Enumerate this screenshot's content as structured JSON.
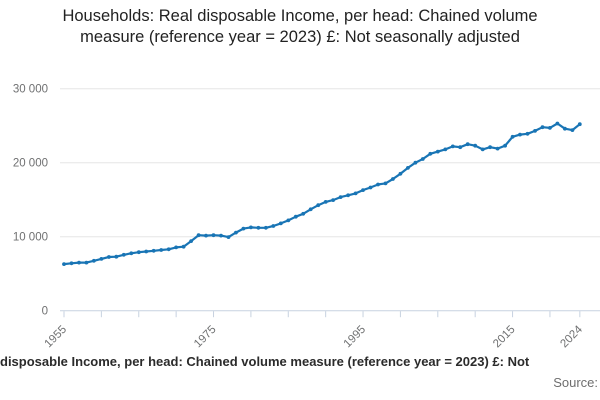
{
  "title": "Households: Real disposable Income, per head: Chained volume measure (reference year = 2023) £: Not seasonally adjusted",
  "footer": {
    "legend_visible_text": "disposable Income, per head: Chained volume measure (reference year = 2023) £: Not",
    "source_label": "Source:"
  },
  "colors": {
    "line": "#1975b5",
    "marker": "#1975b5",
    "grid": "#e6e6e6",
    "axis": "#c7d2e0",
    "tick_label": "#6f7071",
    "title_text": "#222222"
  },
  "chart_data": {
    "type": "line",
    "title": "Households: Real disposable Income, per head: Chained volume measure (reference year = 2023) £: Not seasonally adjusted",
    "xlabel": "",
    "ylabel": "",
    "grid": true,
    "markers": true,
    "legend_position": "bottom",
    "ylim": [
      0,
      30000
    ],
    "xlim": [
      1955,
      2025
    ],
    "start_year": 1955,
    "end_year": 2024,
    "values": [
      6300,
      6400,
      6500,
      6500,
      6750,
      7000,
      7250,
      7300,
      7550,
      7750,
      7900,
      8000,
      8100,
      8200,
      8300,
      8550,
      8650,
      9400,
      10200,
      10150,
      10200,
      10150,
      9950,
      10550,
      11100,
      11250,
      11200,
      11200,
      11450,
      11800,
      12200,
      12700,
      13100,
      13700,
      14250,
      14700,
      14950,
      15350,
      15600,
      15850,
      16300,
      16650,
      17050,
      17200,
      17800,
      18500,
      19300,
      20000,
      20500,
      21200,
      21500,
      21800,
      22200,
      22100,
      22500,
      22300,
      21800,
      22100,
      21900,
      22300,
      23500,
      23800,
      23900,
      24300,
      24800,
      24700,
      25300,
      24600,
      24400,
      25200
    ],
    "yticks": [
      {
        "value": 0,
        "label": "0"
      },
      {
        "value": 10000,
        "label": "10 000"
      },
      {
        "value": 20000,
        "label": "20 000"
      },
      {
        "value": 30000,
        "label": "30 000"
      }
    ],
    "xticks_years": [
      1955,
      1960,
      1965,
      1970,
      1975,
      1980,
      1985,
      1990,
      1995,
      2000,
      2005,
      2010,
      2015,
      2020,
      2024
    ],
    "xtick_labels": [
      {
        "year": 1955,
        "label": "1955"
      },
      {
        "year": 1975,
        "label": "1975"
      },
      {
        "year": 1995,
        "label": "1995"
      },
      {
        "year": 2015,
        "label": "2015"
      },
      {
        "year": 2024,
        "label": "2024"
      }
    ]
  }
}
